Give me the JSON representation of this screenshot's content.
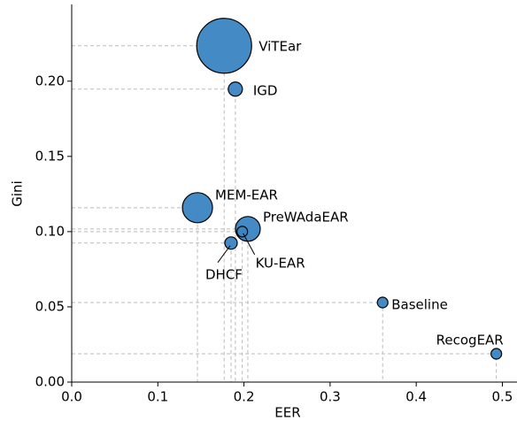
{
  "chart_data": {
    "type": "scatter",
    "xlabel": "EER",
    "ylabel": "Gini",
    "labels": [
      "ViTEar",
      "IGD",
      "MEM-EAR",
      "PreWAdaEAR",
      "KU-EAR",
      "DHCF",
      "Baseline",
      "RecogEAR"
    ],
    "x": [
      0.177,
      0.19,
      0.146,
      0.2045,
      0.198,
      0.185,
      0.361,
      0.493
    ],
    "y": [
      0.2235,
      0.1947,
      0.1159,
      0.1018,
      0.1,
      0.0924,
      0.0529,
      0.0188
    ],
    "sizes": [
      961,
      64,
      289,
      196,
      36,
      49,
      36,
      36
    ],
    "color": "#3a84c1",
    "xlim": [
      0,
      0.517
    ],
    "ylim": [
      0,
      0.251
    ],
    "xticks": [
      {
        "value": 0,
        "label": "0.0"
      },
      0.1,
      0.2,
      0.3,
      0.4,
      0.5
    ],
    "yticks": [
      {
        "value": 0,
        "label": "0.00"
      },
      0.05,
      {
        "value": 0.1,
        "label": "0.10"
      },
      0.15,
      {
        "value": 0.2,
        "label": "0.20"
      }
    ]
  }
}
